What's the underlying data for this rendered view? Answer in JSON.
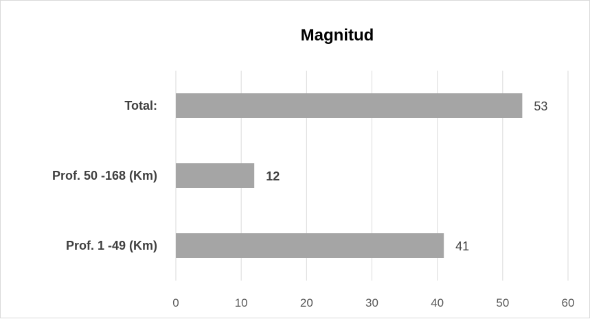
{
  "chart_data": {
    "type": "bar",
    "orientation": "horizontal",
    "title": "Magnitud",
    "xlabel": "",
    "ylabel": "",
    "categories": [
      "Total:",
      "Prof. 50 -168 (Km)",
      "Prof. 1 -49 (Km)"
    ],
    "values": [
      53,
      12,
      41
    ],
    "data_labels": [
      "53",
      "12",
      "41"
    ],
    "data_label_bold": [
      false,
      true,
      false
    ],
    "xlim": [
      0,
      60
    ],
    "x_ticks": [
      0,
      10,
      20,
      30,
      40,
      50,
      60
    ],
    "grid": true,
    "legend": "none",
    "bar_color": "#a5a5a5",
    "grid_color": "#d9d9d9"
  }
}
